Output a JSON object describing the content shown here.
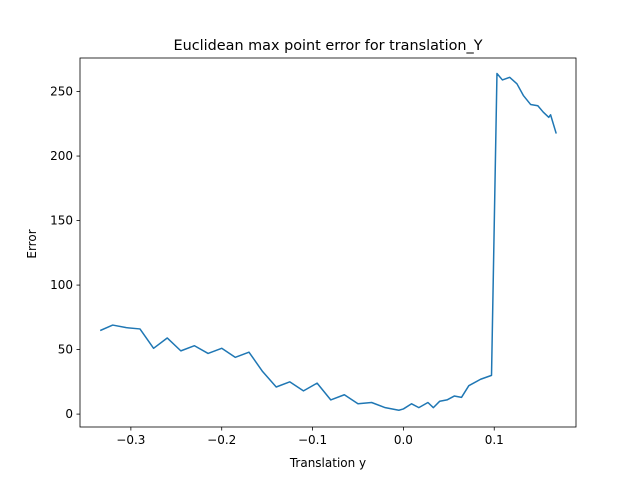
{
  "chart_data": {
    "type": "line",
    "title": "Euclidean max point error for translation_Y",
    "xlabel": "Translation y",
    "ylabel": "Error",
    "xlim": [
      -0.356,
      0.19
    ],
    "ylim": [
      -10,
      276
    ],
    "grid": false,
    "xticks": [
      -0.3,
      -0.2,
      -0.1,
      0.0,
      0.1
    ],
    "xtick_labels": [
      "−0.3",
      "−0.2",
      "−0.1",
      "0.0",
      "0.1"
    ],
    "yticks": [
      0,
      50,
      100,
      150,
      200,
      250
    ],
    "ytick_labels": [
      "0",
      "50",
      "100",
      "150",
      "200",
      "250"
    ],
    "series": [
      {
        "color": "#1f77b4",
        "x": [
          -0.333,
          -0.32,
          -0.305,
          -0.29,
          -0.275,
          -0.26,
          -0.245,
          -0.23,
          -0.215,
          -0.2,
          -0.185,
          -0.17,
          -0.155,
          -0.14,
          -0.125,
          -0.11,
          -0.095,
          -0.08,
          -0.065,
          -0.05,
          -0.035,
          -0.02,
          -0.005,
          0.0,
          0.009,
          0.017,
          0.027,
          0.033,
          0.04,
          0.048,
          0.056,
          0.064,
          0.072,
          0.085,
          0.097,
          0.103,
          0.109,
          0.117,
          0.125,
          0.132,
          0.14,
          0.148,
          0.154,
          0.16,
          0.162,
          0.168
        ],
        "y": [
          65,
          69,
          67,
          66,
          51,
          59,
          49,
          53,
          47,
          51,
          44,
          48,
          33,
          21,
          25,
          18,
          24,
          11,
          15,
          8,
          9,
          5,
          3,
          4,
          8,
          5,
          9,
          5,
          10,
          11,
          14,
          13,
          22,
          27,
          30,
          264,
          259,
          261,
          256,
          247,
          240,
          239,
          234,
          230,
          232,
          218
        ]
      }
    ]
  }
}
